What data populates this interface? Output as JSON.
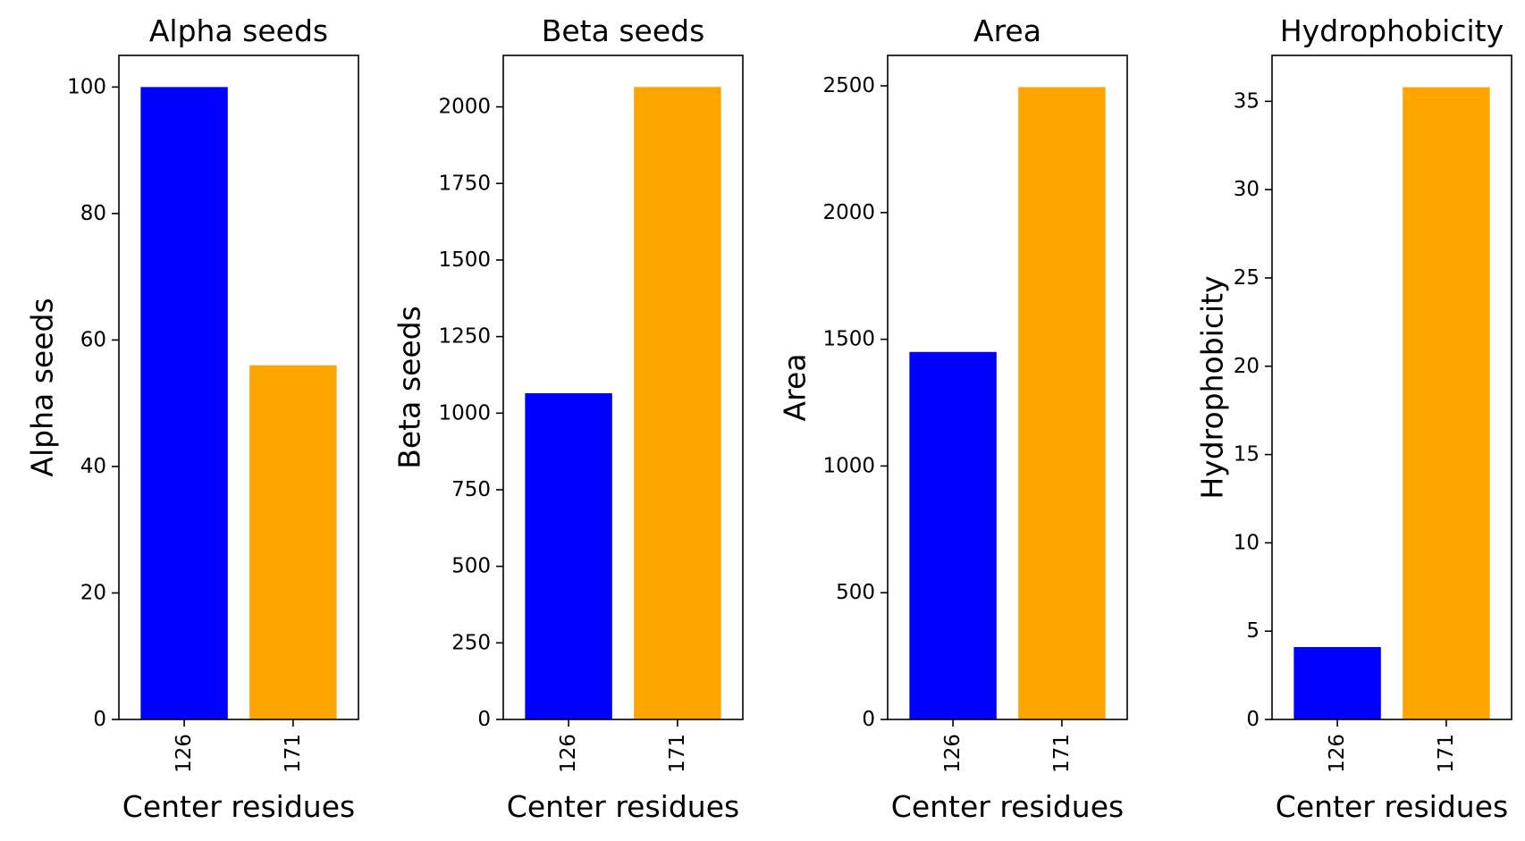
{
  "chart_data": [
    {
      "type": "bar",
      "title": "Alpha seeds",
      "xlabel": "Center residues",
      "ylabel": "Alpha seeds",
      "categories": [
        "126",
        "171"
      ],
      "values": [
        100,
        56
      ],
      "colors": [
        "#0000ff",
        "#ffa500"
      ],
      "ylim": [
        0,
        105
      ],
      "yticks": [
        0,
        20,
        40,
        60,
        80,
        100
      ],
      "grid": false
    },
    {
      "type": "bar",
      "title": "Beta seeds",
      "xlabel": "Center residues",
      "ylabel": "Beta seeds",
      "categories": [
        "126",
        "171"
      ],
      "values": [
        1065,
        2065
      ],
      "colors": [
        "#0000ff",
        "#ffa500"
      ],
      "ylim": [
        0,
        2168
      ],
      "yticks": [
        0,
        250,
        500,
        750,
        1000,
        1250,
        1500,
        1750,
        2000
      ],
      "grid": false
    },
    {
      "type": "bar",
      "title": "Area",
      "xlabel": "Center residues",
      "ylabel": "Area",
      "categories": [
        "126",
        "171"
      ],
      "values": [
        1450,
        2495
      ],
      "colors": [
        "#0000ff",
        "#ffa500"
      ],
      "ylim": [
        0,
        2620
      ],
      "yticks": [
        0,
        500,
        1000,
        1500,
        2000,
        2500
      ],
      "grid": false
    },
    {
      "type": "bar",
      "title": "Hydrophobicity",
      "xlabel": "Center residues",
      "ylabel": "Hydrophobicity",
      "categories": [
        "126",
        "171"
      ],
      "values": [
        4.1,
        35.8
      ],
      "colors": [
        "#0000ff",
        "#ffa500"
      ],
      "ylim": [
        0,
        37.6
      ],
      "yticks": [
        0,
        5,
        10,
        15,
        20,
        25,
        30,
        35
      ],
      "grid": false
    }
  ]
}
